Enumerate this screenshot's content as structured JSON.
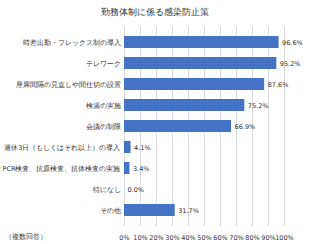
{
  "chart_data": {
    "type": "bar",
    "title": "勤務体制に係る感染防止策",
    "orientation": "horizontal",
    "categories": [
      "時差出勤・フレックス制の導入",
      "テレワーク",
      "座席間隔の見直しや間仕切の設置",
      "検温の実施",
      "会議の制限",
      "週休3日（もしくはそれ以上）の導入",
      "PCR検査、抗原検査、抗体検査の実施",
      "特になし",
      "その他"
    ],
    "values": [
      96.6,
      95.2,
      87.6,
      75.2,
      66.9,
      4.1,
      3.4,
      0.0,
      31.7
    ],
    "value_labels": [
      "96.6%",
      "95.2%",
      "87.6%",
      "75.2%",
      "66.9%",
      "4.1%",
      "3.4%",
      "0.0%",
      "31.7%"
    ],
    "data_labels": true,
    "color": "#4472c4",
    "xlim": [
      0,
      100
    ],
    "xticks": [
      {
        "value": 0,
        "label": "0%"
      },
      {
        "value": 10,
        "label": "10%"
      },
      {
        "value": 20,
        "label": "20%"
      },
      {
        "value": 30,
        "label": "30%"
      },
      {
        "value": 40,
        "label": "40%"
      },
      {
        "value": 50,
        "label": "50%"
      },
      {
        "value": 60,
        "label": "60%"
      },
      {
        "value": 70,
        "label": "70%"
      },
      {
        "value": 80,
        "label": "80%"
      },
      {
        "value": 90,
        "label": "90%"
      },
      {
        "value": 100,
        "label": "100%"
      }
    ],
    "grid": true,
    "annotation": "（複数回答）"
  }
}
